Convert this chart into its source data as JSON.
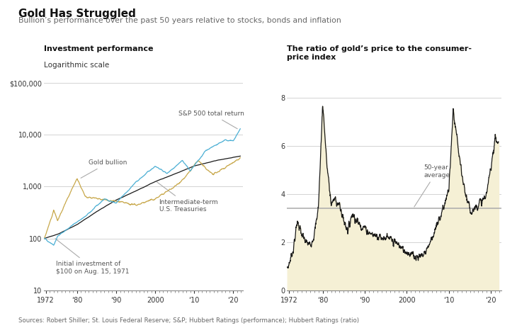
{
  "title": "Gold Has Struggled",
  "subtitle": "Bullion’s performance over the past 50 years relative to stocks, bonds and inflation",
  "left_title": "Investment performance",
  "left_subtitle": "Logarithmic scale",
  "right_title": "The ratio of gold’s price to the consumer-\nprice index",
  "source": "Sources: Robert Shiller; St. Louis Federal Reserve; S&P; Hubbert Ratings (performance); Hubbert Ratings (ratio)",
  "bg_color": "#ffffff",
  "grid_color": "#cccccc",
  "sp500_color": "#4bafd4",
  "gold_color": "#c8a84b",
  "treasury_color": "#1a1a1a",
  "ratio_color": "#1a1a1a",
  "ratio_fill_color": "#f5f0d5",
  "avg_line_color": "#aaaaaa",
  "annotation_color": "#555555",
  "ratio_avg": 3.4
}
